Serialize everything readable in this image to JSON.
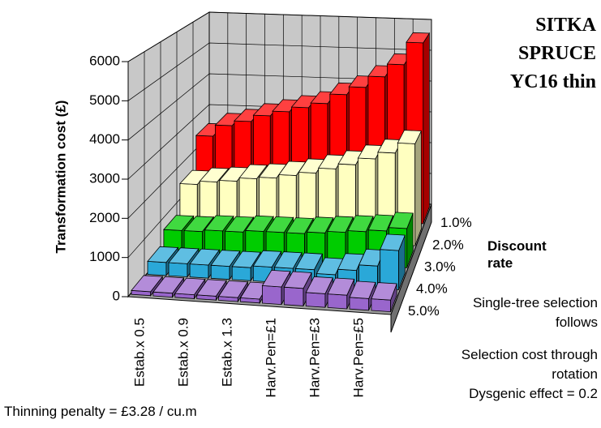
{
  "chart_data": {
    "type": "bar3d",
    "title": "SITKA SPRUCE YC16 thin",
    "y_label": "Transformation cost (£)",
    "depth_label": "Discount rate",
    "notes": [
      "Single-tree selection follows",
      "Selection cost through rotation",
      "Dysgenic effect = 0.2"
    ],
    "footnote": "Thinning penalty = £3.28 / cu.m",
    "categories": [
      "Estab.x 0.5",
      null,
      "Estab.x 0.9",
      null,
      "Estab.x 1.3",
      null,
      "Harv.Pen=£1",
      null,
      "Harv.Pen=£3",
      null,
      "Harv.Pen=£5",
      null
    ],
    "series": [
      {
        "name": "1.0%",
        "color": "#ff0000",
        "values": [
          2450,
          2800,
          2950,
          3150,
          3300,
          3450,
          3600,
          3900,
          4150,
          4500,
          4900,
          5600
        ]
      },
      {
        "name": "2.0%",
        "color": "#ffffc0",
        "values": [
          1500,
          1600,
          1650,
          1750,
          1800,
          1900,
          2000,
          2150,
          2300,
          2500,
          2700,
          3000
        ]
      },
      {
        "name": "3.0%",
        "color": "#00cc00",
        "values": [
          700,
          700,
          750,
          750,
          800,
          800,
          800,
          850,
          900,
          950,
          1000,
          1100
        ]
      },
      {
        "name": "4.0%",
        "color": "#2aa8d8",
        "values": [
          350,
          350,
          350,
          350,
          350,
          400,
          400,
          400,
          300,
          450,
          600,
          1050
        ]
      },
      {
        "name": "5.0%",
        "color": "#9966cc",
        "values": [
          100,
          100,
          100,
          100,
          100,
          100,
          450,
          450,
          350,
          350,
          300,
          300
        ]
      }
    ],
    "ylim": [
      0,
      6000
    ],
    "yticks": [
      0,
      1000,
      2000,
      3000,
      4000,
      5000,
      6000
    ],
    "grid": true
  }
}
